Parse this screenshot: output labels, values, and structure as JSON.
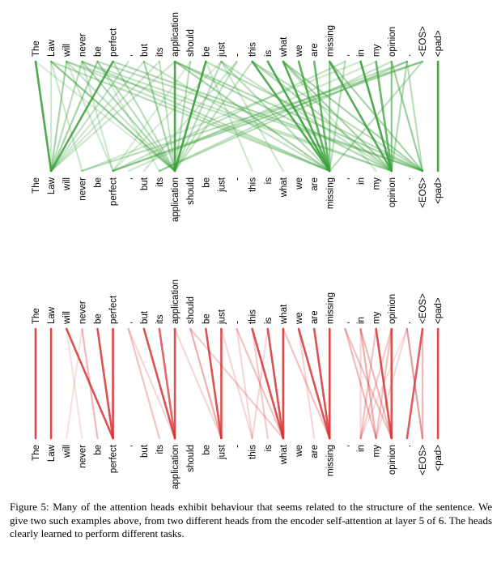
{
  "tokens": [
    "The",
    "Law",
    "will",
    "never",
    "be",
    "perfect",
    ",",
    "but",
    "its",
    "application",
    "should",
    "be",
    "just",
    "-",
    "this",
    "is",
    "what",
    "we",
    "are",
    "missing",
    ",",
    "in",
    "my",
    "opinion",
    ".",
    "<EOS>",
    "<pad>"
  ],
  "panels": [
    {
      "name": "green-head",
      "color": "#3aa03a",
      "links": [
        [
          0,
          1,
          0.9
        ],
        [
          1,
          1,
          0.25
        ],
        [
          2,
          1,
          0.45
        ],
        [
          3,
          1,
          0.35
        ],
        [
          4,
          1,
          0.45
        ],
        [
          5,
          1,
          0.85
        ],
        [
          6,
          1,
          0.3
        ],
        [
          7,
          1,
          0.25
        ],
        [
          8,
          1,
          0.25
        ],
        [
          9,
          1,
          0.25
        ],
        [
          0,
          9,
          0.2
        ],
        [
          1,
          9,
          0.55
        ],
        [
          2,
          9,
          0.3
        ],
        [
          3,
          9,
          0.4
        ],
        [
          4,
          9,
          0.35
        ],
        [
          5,
          9,
          0.35
        ],
        [
          7,
          9,
          0.45
        ],
        [
          8,
          9,
          0.3
        ],
        [
          9,
          9,
          0.9
        ],
        [
          10,
          9,
          0.35
        ],
        [
          11,
          9,
          0.9
        ],
        [
          12,
          9,
          0.35
        ],
        [
          13,
          9,
          0.3
        ],
        [
          14,
          9,
          0.3
        ],
        [
          1,
          19,
          0.35
        ],
        [
          2,
          19,
          0.3
        ],
        [
          3,
          19,
          0.35
        ],
        [
          7,
          19,
          0.3
        ],
        [
          9,
          19,
          0.45
        ],
        [
          12,
          19,
          0.35
        ],
        [
          14,
          19,
          0.85
        ],
        [
          15,
          19,
          0.9
        ],
        [
          16,
          19,
          0.85
        ],
        [
          17,
          19,
          0.8
        ],
        [
          18,
          19,
          0.75
        ],
        [
          19,
          19,
          0.55
        ],
        [
          20,
          19,
          0.35
        ],
        [
          2,
          23,
          0.3
        ],
        [
          3,
          23,
          0.3
        ],
        [
          9,
          23,
          0.4
        ],
        [
          12,
          23,
          0.3
        ],
        [
          14,
          23,
          0.4
        ],
        [
          16,
          23,
          0.45
        ],
        [
          19,
          23,
          0.85
        ],
        [
          21,
          23,
          0.9
        ],
        [
          22,
          23,
          0.75
        ],
        [
          23,
          23,
          0.6
        ],
        [
          24,
          23,
          0.4
        ],
        [
          4,
          25,
          0.35
        ],
        [
          5,
          25,
          0.4
        ],
        [
          9,
          25,
          0.4
        ],
        [
          11,
          25,
          0.35
        ],
        [
          14,
          25,
          0.35
        ],
        [
          16,
          25,
          0.45
        ],
        [
          19,
          25,
          0.45
        ],
        [
          23,
          25,
          0.5
        ],
        [
          24,
          25,
          0.35
        ],
        [
          26,
          26,
          0.95
        ],
        [
          25,
          3,
          0.35
        ],
        [
          25,
          5,
          0.45
        ],
        [
          24,
          5,
          0.35
        ],
        [
          24,
          8,
          0.35
        ],
        [
          23,
          8,
          0.3
        ],
        [
          20,
          5,
          0.3
        ],
        [
          21,
          3,
          0.25
        ],
        [
          22,
          6,
          0.25
        ],
        [
          25,
          19,
          0.35
        ],
        [
          2,
          5,
          0.25
        ],
        [
          3,
          5,
          0.25
        ],
        [
          1,
          3,
          0.25
        ],
        [
          12,
          5,
          0.2
        ],
        [
          13,
          7,
          0.25
        ],
        [
          11,
          14,
          0.25
        ],
        [
          12,
          16,
          0.25
        ],
        [
          10,
          5,
          0.2
        ],
        [
          4,
          8,
          0.2
        ],
        [
          16,
          22,
          0.25
        ]
      ]
    },
    {
      "name": "red-head",
      "color": "#d63434",
      "links": [
        [
          0,
          0,
          0.9
        ],
        [
          1,
          1,
          0.9
        ],
        [
          2,
          5,
          0.85
        ],
        [
          3,
          4,
          0.35
        ],
        [
          4,
          5,
          0.85
        ],
        [
          5,
          5,
          0.9
        ],
        [
          3,
          2,
          0.15
        ],
        [
          2,
          3,
          0.15
        ],
        [
          6,
          8,
          0.3
        ],
        [
          7,
          9,
          0.85
        ],
        [
          8,
          9,
          0.75
        ],
        [
          9,
          9,
          0.85
        ],
        [
          6,
          9,
          0.2
        ],
        [
          10,
          12,
          0.4
        ],
        [
          11,
          12,
          0.85
        ],
        [
          12,
          12,
          0.85
        ],
        [
          10,
          16,
          0.25
        ],
        [
          9,
          12,
          0.2
        ],
        [
          13,
          16,
          0.3
        ],
        [
          14,
          16,
          0.85
        ],
        [
          15,
          16,
          0.85
        ],
        [
          16,
          16,
          0.9
        ],
        [
          14,
          15,
          0.25
        ],
        [
          13,
          14,
          0.2
        ],
        [
          15,
          14,
          0.2
        ],
        [
          12,
          14,
          0.2
        ],
        [
          17,
          19,
          0.85
        ],
        [
          18,
          19,
          0.85
        ],
        [
          19,
          19,
          0.9
        ],
        [
          16,
          19,
          0.3
        ],
        [
          17,
          18,
          0.2
        ],
        [
          20,
          23,
          0.3
        ],
        [
          21,
          23,
          0.35
        ],
        [
          22,
          23,
          0.85
        ],
        [
          23,
          23,
          0.85
        ],
        [
          20,
          22,
          0.35
        ],
        [
          21,
          22,
          0.4
        ],
        [
          22,
          21,
          0.3
        ],
        [
          23,
          21,
          0.25
        ],
        [
          23,
          22,
          0.3
        ],
        [
          21,
          21,
          0.2
        ],
        [
          24,
          22,
          0.2
        ],
        [
          24,
          21,
          0.15
        ],
        [
          24,
          25,
          0.5
        ],
        [
          25,
          24,
          0.8
        ],
        [
          25,
          25,
          0.35
        ],
        [
          26,
          26,
          0.9
        ]
      ]
    }
  ],
  "caption": {
    "label": "Figure 5:",
    "text": " Many of the attention heads exhibit behaviour that seems related to the structure of the sentence. We give two such examples above, from two different heads from the encoder self-attention at layer 5 of 6. The heads clearly learned to perform different tasks."
  }
}
